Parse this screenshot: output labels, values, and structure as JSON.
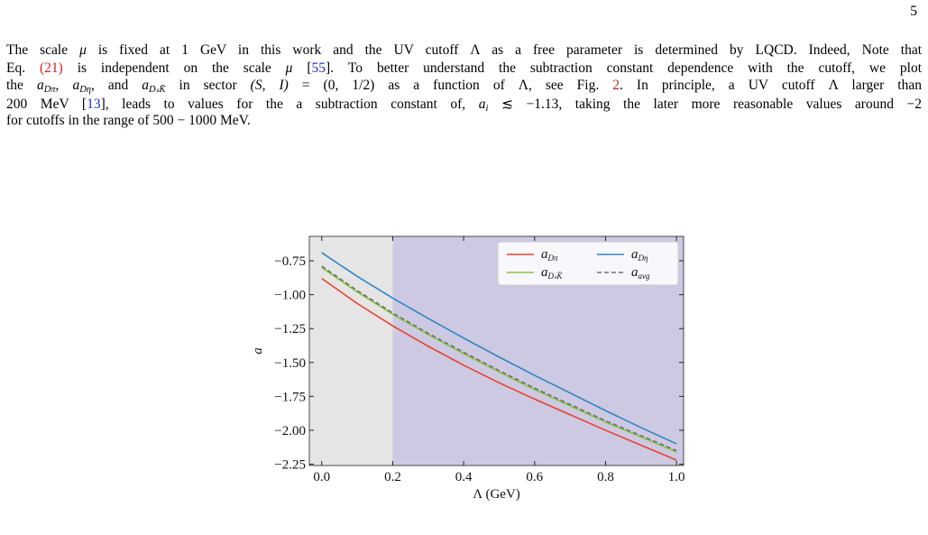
{
  "page_number": "5",
  "paragraph": [
    [
      {
        "text": "The scale "
      },
      {
        "text": "μ",
        "style": "italic"
      },
      {
        "text": " is fixed at 1 GeV in this work and the UV cutoff Λ as a free parameter is determined by LQCD. Indeed, Note that"
      }
    ],
    [
      {
        "text": "Eq. "
      },
      {
        "text": "(21)",
        "style": "red"
      },
      {
        "text": " is independent on the scale "
      },
      {
        "text": "μ",
        "style": "italic"
      },
      {
        "text": " ["
      },
      {
        "text": "55",
        "style": "blue"
      },
      {
        "text": "]. To better understand the subtraction constant dependence with the cutoff, we plot"
      }
    ],
    [
      {
        "text": "the "
      },
      {
        "text": "a",
        "sub": "Dπ",
        "style": "italic"
      },
      {
        "text": ", "
      },
      {
        "text": "a",
        "sub": "Dη",
        "style": "italic"
      },
      {
        "text": ", and "
      },
      {
        "text": "a",
        "sub": "DₛK̄",
        "style": "italic"
      },
      {
        "text": " in sector "
      },
      {
        "text": "(S, I)",
        "style": "italic"
      },
      {
        "text": " = (0, 1/2) as a function of Λ, see Fig. "
      },
      {
        "text": "2",
        "style": "red"
      },
      {
        "text": ". In principle, a UV cutoff Λ larger than"
      }
    ],
    [
      {
        "text": "200 MeV ["
      },
      {
        "text": "13",
        "style": "blue"
      },
      {
        "text": "], leads to values for the a subtraction constant of, "
      },
      {
        "text": "a",
        "sub": "i",
        "style": "italic"
      },
      {
        "text": " ≲ −1.13, taking the later more reasonable values around −2"
      }
    ],
    [
      {
        "text": "for cutoffs in the range of 500 − 1000 MeV."
      }
    ]
  ],
  "chart_data": {
    "type": "line",
    "xlabel": "Λ (GeV)",
    "ylabel": "a",
    "x": [
      0,
      0.1,
      0.2,
      0.3,
      0.4,
      0.5,
      0.6,
      0.7,
      0.8,
      0.9,
      1.0
    ],
    "series": [
      {
        "name": "aDπ",
        "color": "#e8432f",
        "values": [
          -0.88,
          -1.065,
          -1.23,
          -1.38,
          -1.52,
          -1.65,
          -1.77,
          -1.885,
          -2.0,
          -2.11,
          -2.22
        ]
      },
      {
        "name": "aDη",
        "color": "#2f86c4",
        "values": [
          -0.69,
          -0.865,
          -1.025,
          -1.175,
          -1.32,
          -1.46,
          -1.595,
          -1.725,
          -1.855,
          -1.98,
          -2.1
        ]
      },
      {
        "name": "aDₛK̄",
        "color": "#8ac43f",
        "values": [
          -0.8,
          -0.98,
          -1.145,
          -1.295,
          -1.435,
          -1.57,
          -1.7,
          -1.82,
          -1.94,
          -2.05,
          -2.16
        ]
      },
      {
        "name": "aavg",
        "color": "#707070",
        "dash": true,
        "values": [
          -0.79,
          -0.97,
          -1.135,
          -1.285,
          -1.425,
          -1.56,
          -1.69,
          -1.81,
          -1.93,
          -2.04,
          -2.15
        ]
      }
    ],
    "xlim": [
      -0.035,
      1.02
    ],
    "ylim": [
      -2.26,
      -0.57
    ],
    "xticks": [
      {
        "value": 0,
        "label": "0.0"
      },
      {
        "value": 0.2,
        "label": "0.2"
      },
      {
        "value": 0.4,
        "label": "0.4"
      },
      {
        "value": 0.6,
        "label": "0.6"
      },
      {
        "value": 0.8,
        "label": "0.8"
      },
      {
        "value": 1.0,
        "label": "1.0"
      }
    ],
    "yticks": [
      {
        "value": -0.75,
        "label": "−0.75"
      },
      {
        "value": -1.0,
        "label": "−1.00"
      },
      {
        "value": -1.25,
        "label": "−1.25"
      },
      {
        "value": -1.5,
        "label": "−1.50"
      },
      {
        "value": -1.75,
        "label": "−1.75"
      },
      {
        "value": -2.0,
        "label": "−2.00"
      },
      {
        "value": -2.25,
        "label": "−2.25"
      }
    ],
    "shade_split": 0.2,
    "shade_colors": [
      "#e5e5e5",
      "#cdc9e2"
    ],
    "legend": "upper right"
  }
}
